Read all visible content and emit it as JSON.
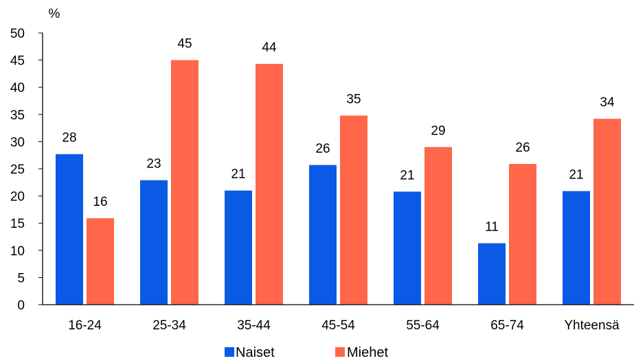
{
  "chart_data": {
    "type": "bar",
    "ylabel": "%",
    "ylim": [
      0,
      50
    ],
    "yticks": [
      0,
      5,
      10,
      15,
      20,
      25,
      30,
      35,
      40,
      45,
      50
    ],
    "categories": [
      "16-24",
      "25-34",
      "35-44",
      "45-54",
      "55-64",
      "65-74",
      "Yhteensä"
    ],
    "series": [
      {
        "name": "Naiset",
        "color": "#0a5ae6",
        "values": [
          27.7,
          22.9,
          21.0,
          25.7,
          20.8,
          11.3,
          20.9
        ],
        "labels": [
          "28",
          "23",
          "21",
          "26",
          "21",
          "11",
          "21"
        ]
      },
      {
        "name": "Miehet",
        "color": "#ff664a",
        "values": [
          15.9,
          45.0,
          44.3,
          34.8,
          29.0,
          25.9,
          34.2
        ],
        "labels": [
          "16",
          "45",
          "44",
          "35",
          "29",
          "26",
          "34"
        ]
      }
    ],
    "grid": false,
    "legend": "bottom-center"
  }
}
